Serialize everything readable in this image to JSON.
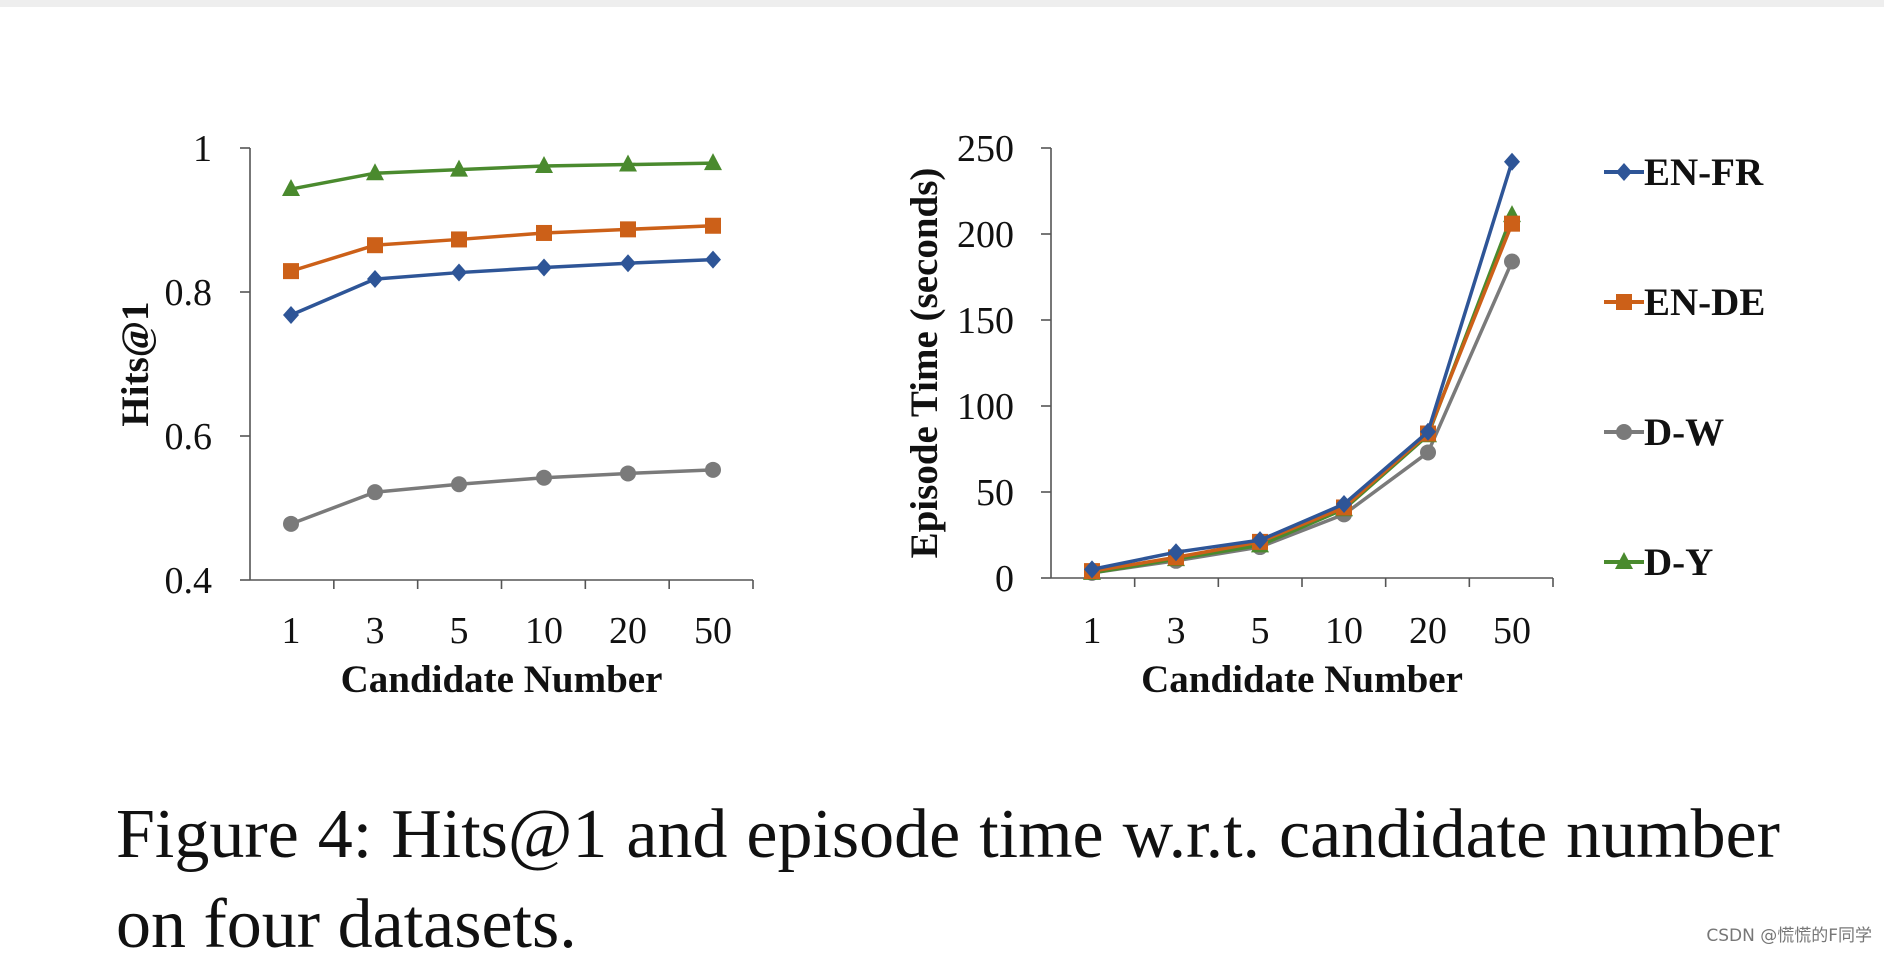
{
  "chart_data": [
    {
      "type": "line",
      "title": "",
      "xlabel": "Candidate Number",
      "ylabel": "Hits@1",
      "categories": [
        "1",
        "3",
        "5",
        "10",
        "20",
        "50"
      ],
      "ylim": [
        0.4,
        1
      ],
      "yticks": [
        "0.4",
        "0.6",
        "0.8",
        "1"
      ],
      "series": [
        {
          "name": "EN-FR",
          "color": "#2e5597",
          "marker": "diamond",
          "values": [
            0.768,
            0.818,
            0.827,
            0.834,
            0.84,
            0.845
          ]
        },
        {
          "name": "EN-DE",
          "color": "#cc6018",
          "marker": "square",
          "values": [
            0.829,
            0.865,
            0.873,
            0.882,
            0.887,
            0.892
          ]
        },
        {
          "name": "D-W",
          "color": "#7a7a7a",
          "marker": "circle",
          "values": [
            0.478,
            0.522,
            0.533,
            0.542,
            0.548,
            0.553
          ]
        },
        {
          "name": "D-Y",
          "color": "#4a8a2e",
          "marker": "triangle",
          "values": [
            0.943,
            0.965,
            0.97,
            0.975,
            0.977,
            0.979
          ]
        }
      ]
    },
    {
      "type": "line",
      "title": "",
      "xlabel": "Candidate Number",
      "ylabel": "Episode Time (seconds)",
      "categories": [
        "1",
        "3",
        "5",
        "10",
        "20",
        "50"
      ],
      "ylim": [
        0,
        250
      ],
      "yticks": [
        "0",
        "50",
        "100",
        "150",
        "200",
        "250"
      ],
      "series": [
        {
          "name": "EN-FR",
          "color": "#2e5597",
          "marker": "diamond",
          "values": [
            5,
            15,
            22,
            43,
            85,
            242
          ]
        },
        {
          "name": "EN-DE",
          "color": "#cc6018",
          "marker": "square",
          "values": [
            4,
            12,
            21,
            41,
            84,
            206
          ]
        },
        {
          "name": "D-W",
          "color": "#7a7a7a",
          "marker": "circle",
          "values": [
            3,
            10,
            18,
            37,
            73,
            184
          ]
        },
        {
          "name": "D-Y",
          "color": "#4a8a2e",
          "marker": "triangle",
          "values": [
            3,
            11,
            19,
            40,
            83,
            211
          ]
        }
      ]
    }
  ],
  "legend": {
    "placement": "right",
    "entries": [
      "EN-FR",
      "EN-DE",
      "D-W",
      "D-Y"
    ]
  },
  "caption": "Figure 4: Hits@1 and episode time w.r.t. candidate number on four datasets.",
  "watermark": "CSDN @慌慌的F同学"
}
